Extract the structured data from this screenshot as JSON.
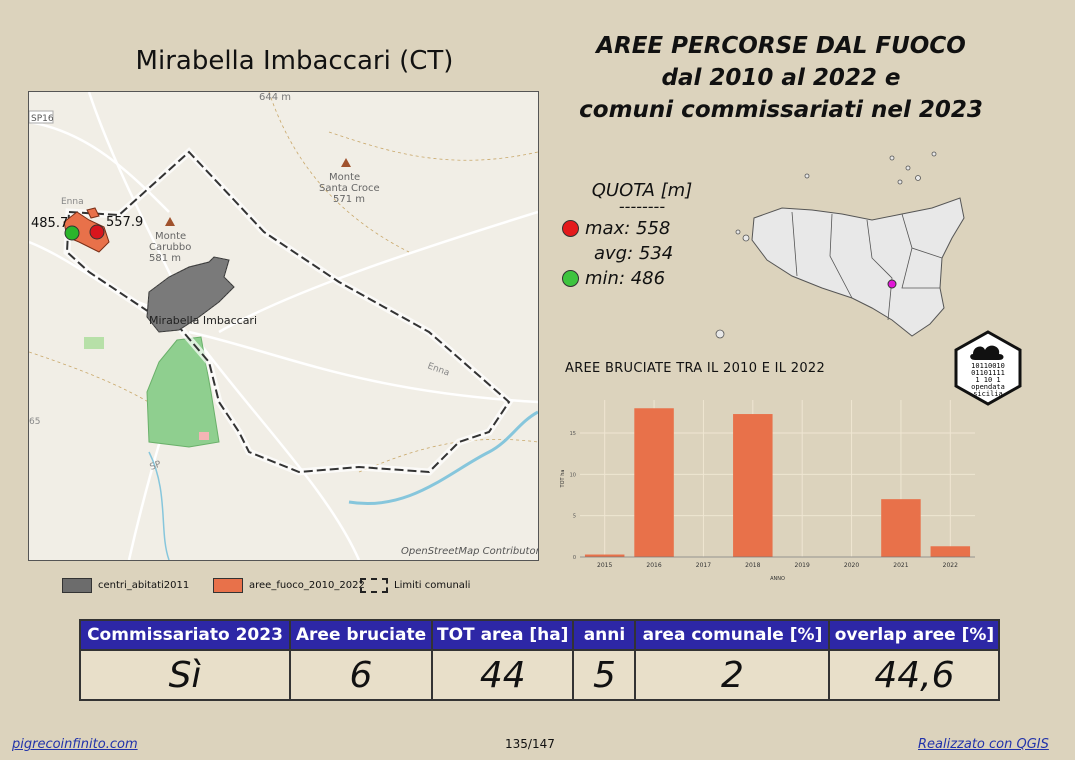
{
  "map": {
    "title": "Mirabella Imbaccari (CT)",
    "town_label": "Mirabella Imbaccari",
    "attribution": "OpenStreetMap Contributor",
    "places": [
      {
        "label": "644 m"
      },
      {
        "label": "SP16"
      },
      {
        "label": "Monte"
      },
      {
        "label": "Santa Croce"
      },
      {
        "label": "571 m"
      },
      {
        "label": "Monte"
      },
      {
        "label": "Carubbo"
      },
      {
        "label": "581 m"
      },
      {
        "label": "Enna"
      },
      {
        "label": "Enna"
      },
      {
        "label": "SP"
      },
      {
        "label": "65"
      }
    ],
    "points": [
      {
        "label": "485.7",
        "color": "#2bb52b"
      },
      {
        "label": "557.9",
        "color": "#d8151d"
      }
    ]
  },
  "legend": [
    {
      "label": "centri_abitati2011"
    },
    {
      "label": "aree_fuoco_2010_2022",
      "color": "#e8714a"
    },
    {
      "label": "Limiti comunali"
    }
  ],
  "title": {
    "line1": "AREE PERCORSE DAL FUOCO",
    "line2": "dal 2010 al 2022 e",
    "line3": "comuni commissariati nel 2023"
  },
  "quota": {
    "title": "QUOTA [m]",
    "separator": "--------",
    "max_label": "max: 558",
    "avg_label": "avg: 534",
    "min_label": "min: 486",
    "max_color": "#e41a1c",
    "min_color": "#3ec43e"
  },
  "logo": {
    "bits1": "10110010",
    "bits2": "01101111",
    "bits3": "1  10 1",
    "text1": "opendata",
    "text2": "sicilia"
  },
  "chart_data": {
    "type": "bar",
    "title": "AREE BRUCIATE TRA IL 2010 E IL 2022",
    "xlabel": "ANNO",
    "ylabel": "TOT ha",
    "categories": [
      "2015",
      "2016",
      "2017",
      "2018",
      "2019",
      "2020",
      "2021",
      "2022"
    ],
    "values": [
      0.3,
      18,
      0,
      17.3,
      0,
      0,
      7,
      1.3
    ],
    "yticks": [
      "0",
      "5",
      "10",
      "15"
    ],
    "ylim": [
      0,
      19
    ],
    "bar_color": "#e8714a"
  },
  "table": {
    "headers": [
      "Commissariato 2023",
      "Aree bruciate",
      "TOT area [ha]",
      "anni",
      "area comunale [%]",
      "overlap aree [%]"
    ],
    "values": [
      "Sì",
      "6",
      "44",
      "5",
      "2",
      "44,6"
    ]
  },
  "footer": {
    "left": "pigrecoinfinito.com",
    "center": "135/147",
    "right": "Realizzato con QGIS"
  }
}
